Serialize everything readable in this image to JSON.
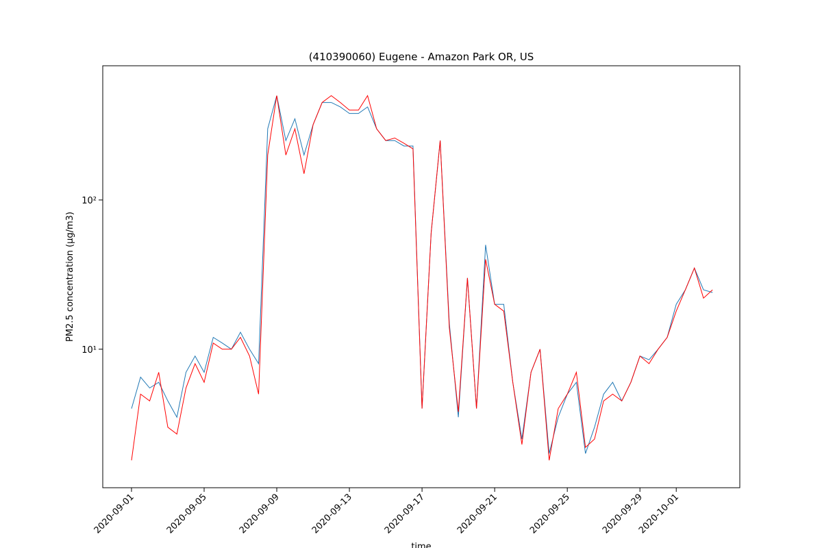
{
  "chart_data": {
    "type": "line",
    "title": "(410390060) Eugene - Amazon Park OR, US",
    "xlabel": "time",
    "ylabel": "PM2.5 concentration (µg/m3)",
    "log_y": true,
    "x": [
      "2020-09-01 00:00",
      "2020-09-01 12:00",
      "2020-09-02 00:00",
      "2020-09-02 12:00",
      "2020-09-03 00:00",
      "2020-09-03 12:00",
      "2020-09-04 00:00",
      "2020-09-04 12:00",
      "2020-09-05 00:00",
      "2020-09-05 12:00",
      "2020-09-06 00:00",
      "2020-09-06 12:00",
      "2020-09-07 00:00",
      "2020-09-07 12:00",
      "2020-09-08 00:00",
      "2020-09-08 12:00",
      "2020-09-09 00:00",
      "2020-09-09 12:00",
      "2020-09-10 00:00",
      "2020-09-10 12:00",
      "2020-09-11 00:00",
      "2020-09-11 12:00",
      "2020-09-12 00:00",
      "2020-09-12 12:00",
      "2020-09-13 00:00",
      "2020-09-13 12:00",
      "2020-09-14 00:00",
      "2020-09-14 12:00",
      "2020-09-15 00:00",
      "2020-09-15 12:00",
      "2020-09-16 00:00",
      "2020-09-16 12:00",
      "2020-09-17 00:00",
      "2020-09-17 12:00",
      "2020-09-18 00:00",
      "2020-09-18 12:00",
      "2020-09-19 00:00",
      "2020-09-19 12:00",
      "2020-09-20 00:00",
      "2020-09-20 12:00",
      "2020-09-21 00:00",
      "2020-09-21 12:00",
      "2020-09-22 00:00",
      "2020-09-22 12:00",
      "2020-09-23 00:00",
      "2020-09-23 12:00",
      "2020-09-24 00:00",
      "2020-09-24 12:00",
      "2020-09-25 00:00",
      "2020-09-25 12:00",
      "2020-09-26 00:00",
      "2020-09-26 12:00",
      "2020-09-27 00:00",
      "2020-09-27 12:00",
      "2020-09-28 00:00",
      "2020-09-28 12:00",
      "2020-09-29 00:00",
      "2020-09-29 12:00",
      "2020-09-30 00:00",
      "2020-09-30 12:00",
      "2020-10-01 00:00",
      "2020-10-01 12:00",
      "2020-10-02 00:00",
      "2020-10-02 12:00",
      "2020-10-03 00:00"
    ],
    "series": [
      {
        "color": "#1f77b4",
        "values": [
          4,
          6.5,
          5.5,
          6,
          4.5,
          3.5,
          7,
          9,
          7,
          12,
          11,
          10,
          13,
          10,
          8,
          300,
          500,
          250,
          350,
          200,
          320,
          450,
          450,
          420,
          380,
          380,
          420,
          300,
          250,
          250,
          230,
          230,
          4,
          60,
          250,
          15,
          3.5,
          30,
          4,
          50,
          20,
          20,
          6,
          2.5,
          7,
          10,
          2,
          3.5,
          5,
          6,
          2,
          3,
          5,
          6,
          4.5,
          6,
          9,
          8.5,
          10,
          12,
          20,
          25,
          35,
          25,
          24
        ]
      },
      {
        "color": "#ff0000",
        "values": [
          1.8,
          5,
          4.5,
          7,
          3,
          2.7,
          5.5,
          8,
          6,
          11,
          10,
          10,
          12,
          9,
          5,
          200,
          500,
          200,
          300,
          150,
          320,
          450,
          500,
          450,
          400,
          400,
          500,
          300,
          250,
          260,
          240,
          220,
          4,
          60,
          250,
          14,
          3.8,
          30,
          4,
          40,
          20,
          18,
          6,
          2.3,
          7,
          10,
          1.8,
          4,
          5,
          7,
          2.2,
          2.5,
          4.5,
          5,
          4.5,
          6,
          9,
          8,
          10,
          12,
          18,
          25,
          35,
          22,
          25
        ]
      }
    ],
    "xlim": [
      "2020-08-30 10:00",
      "2020-10-04 12:00"
    ],
    "xticks": [
      "2020-09-01",
      "2020-09-05",
      "2020-09-09",
      "2020-09-13",
      "2020-09-17",
      "2020-09-21",
      "2020-09-25",
      "2020-09-29",
      "2020-10-01"
    ],
    "ylim": [
      1.18,
      793
    ],
    "yticks": [
      {
        "value": 10,
        "label": "10¹"
      },
      {
        "value": 100,
        "label": "10²"
      }
    ]
  }
}
